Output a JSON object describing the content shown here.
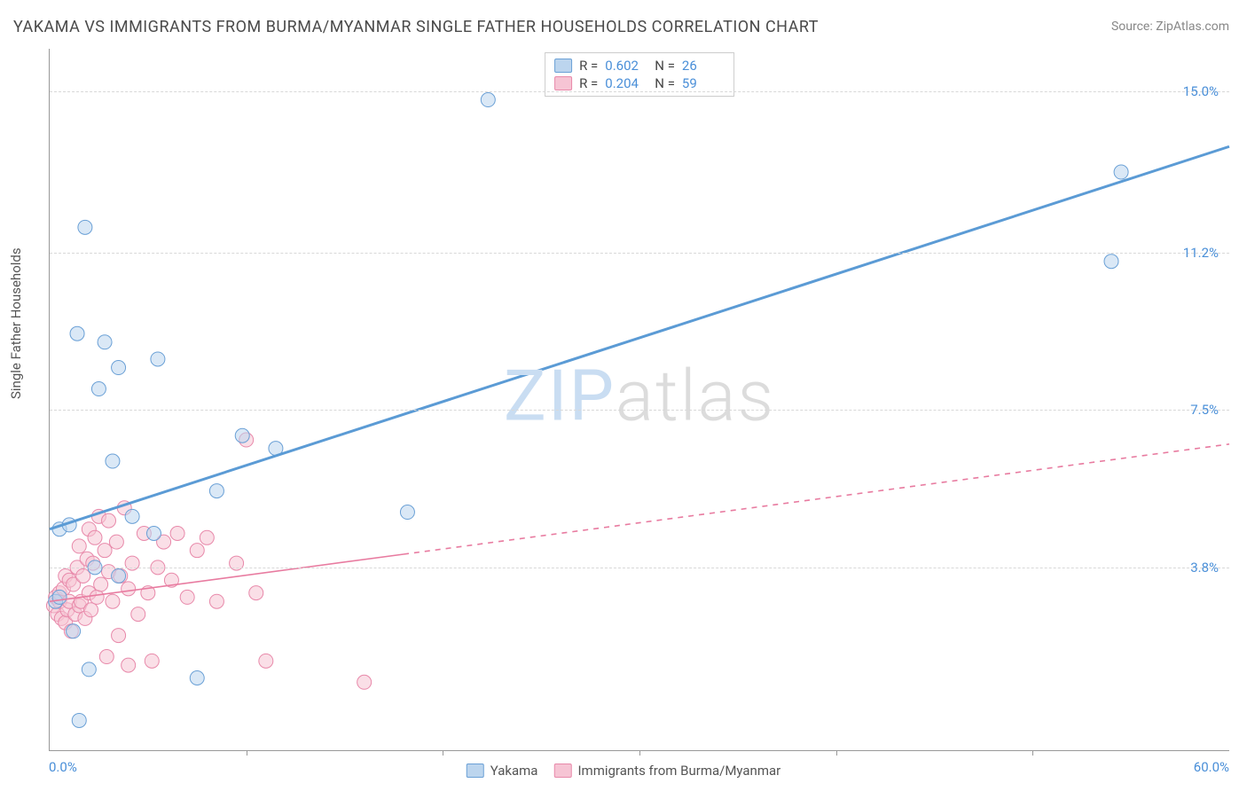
{
  "title": "YAKAMA VS IMMIGRANTS FROM BURMA/MYANMAR SINGLE FATHER HOUSEHOLDS CORRELATION CHART",
  "source": "Source: ZipAtlas.com",
  "ylabel": "Single Father Households",
  "watermark": {
    "zip": "ZIP",
    "atlas": "atlas"
  },
  "axes": {
    "x_min": 0.0,
    "x_max": 60.0,
    "y_min": -0.5,
    "y_max": 16.0,
    "x_start_label": "0.0%",
    "x_end_label": "60.0%",
    "y_ticks": [
      {
        "v": 3.8,
        "label": "3.8%"
      },
      {
        "v": 7.5,
        "label": "7.5%"
      },
      {
        "v": 11.2,
        "label": "11.2%"
      },
      {
        "v": 15.0,
        "label": "15.0%"
      }
    ],
    "x_tick_step": 10
  },
  "styling": {
    "grid_color": "#d8d8d8",
    "axis_color": "#999999",
    "tick_label_color": "#4a8fd8",
    "background": "#ffffff",
    "marker_radius": 8,
    "marker_opacity": 0.55,
    "title_fontsize": 18,
    "label_fontsize": 15,
    "line_width_a": 3,
    "line_width_b": 1.6
  },
  "series_a": {
    "name": "Yakama",
    "color": "#5b9bd5",
    "fill": "#bcd5ee",
    "stroke": "#6aa0d6",
    "R": "0.602",
    "N": "26",
    "trend": {
      "x1": 0,
      "y1": 4.7,
      "x2": 60,
      "y2": 13.7,
      "solid_until_x": 60
    },
    "points": [
      [
        0.3,
        3.0
      ],
      [
        0.5,
        3.1
      ],
      [
        0.5,
        4.7
      ],
      [
        1.0,
        4.8
      ],
      [
        1.2,
        2.3
      ],
      [
        1.4,
        9.3
      ],
      [
        1.5,
        0.2
      ],
      [
        1.8,
        11.8
      ],
      [
        2.0,
        1.4
      ],
      [
        2.3,
        3.8
      ],
      [
        2.5,
        8.0
      ],
      [
        2.8,
        9.1
      ],
      [
        3.2,
        6.3
      ],
      [
        3.5,
        8.5
      ],
      [
        3.5,
        3.6
      ],
      [
        4.2,
        5.0
      ],
      [
        5.3,
        4.6
      ],
      [
        5.5,
        8.7
      ],
      [
        7.5,
        1.2
      ],
      [
        8.5,
        5.6
      ],
      [
        9.8,
        6.9
      ],
      [
        11.5,
        6.6
      ],
      [
        18.2,
        5.1
      ],
      [
        22.3,
        14.8
      ],
      [
        54.5,
        13.1
      ],
      [
        54.0,
        11.0
      ]
    ]
  },
  "series_b": {
    "name": "Immigrants from Burma/Myanmar",
    "color": "#e87ba0",
    "fill": "#f6c4d4",
    "stroke": "#e889aa",
    "R": "0.204",
    "N": "59",
    "trend": {
      "x1": 0,
      "y1": 3.0,
      "x2": 60,
      "y2": 6.7,
      "solid_until_x": 18
    },
    "points": [
      [
        0.2,
        2.9
      ],
      [
        0.3,
        3.1
      ],
      [
        0.4,
        2.7
      ],
      [
        0.5,
        3.0
      ],
      [
        0.5,
        3.2
      ],
      [
        0.6,
        2.6
      ],
      [
        0.7,
        3.3
      ],
      [
        0.8,
        2.5
      ],
      [
        0.8,
        3.6
      ],
      [
        0.9,
        2.8
      ],
      [
        1.0,
        3.0
      ],
      [
        1.0,
        3.5
      ],
      [
        1.1,
        2.3
      ],
      [
        1.2,
        3.4
      ],
      [
        1.3,
        2.7
      ],
      [
        1.4,
        3.8
      ],
      [
        1.5,
        2.9
      ],
      [
        1.5,
        4.3
      ],
      [
        1.6,
        3.0
      ],
      [
        1.7,
        3.6
      ],
      [
        1.8,
        2.6
      ],
      [
        1.9,
        4.0
      ],
      [
        2.0,
        3.2
      ],
      [
        2.0,
        4.7
      ],
      [
        2.1,
        2.8
      ],
      [
        2.2,
        3.9
      ],
      [
        2.3,
        4.5
      ],
      [
        2.4,
        3.1
      ],
      [
        2.5,
        5.0
      ],
      [
        2.6,
        3.4
      ],
      [
        2.8,
        4.2
      ],
      [
        2.9,
        1.7
      ],
      [
        3.0,
        3.7
      ],
      [
        3.0,
        4.9
      ],
      [
        3.2,
        3.0
      ],
      [
        3.4,
        4.4
      ],
      [
        3.5,
        2.2
      ],
      [
        3.6,
        3.6
      ],
      [
        3.8,
        5.2
      ],
      [
        4.0,
        3.3
      ],
      [
        4.0,
        1.5
      ],
      [
        4.2,
        3.9
      ],
      [
        4.5,
        2.7
      ],
      [
        4.8,
        4.6
      ],
      [
        5.0,
        3.2
      ],
      [
        5.2,
        1.6
      ],
      [
        5.5,
        3.8
      ],
      [
        5.8,
        4.4
      ],
      [
        6.2,
        3.5
      ],
      [
        6.5,
        4.6
      ],
      [
        7.0,
        3.1
      ],
      [
        7.5,
        4.2
      ],
      [
        8.0,
        4.5
      ],
      [
        8.5,
        3.0
      ],
      [
        9.5,
        3.9
      ],
      [
        10.0,
        6.8
      ],
      [
        10.5,
        3.2
      ],
      [
        16.0,
        1.1
      ],
      [
        11.0,
        1.6
      ]
    ]
  },
  "legend_top": {
    "r_label": "R =",
    "n_label": "N ="
  }
}
